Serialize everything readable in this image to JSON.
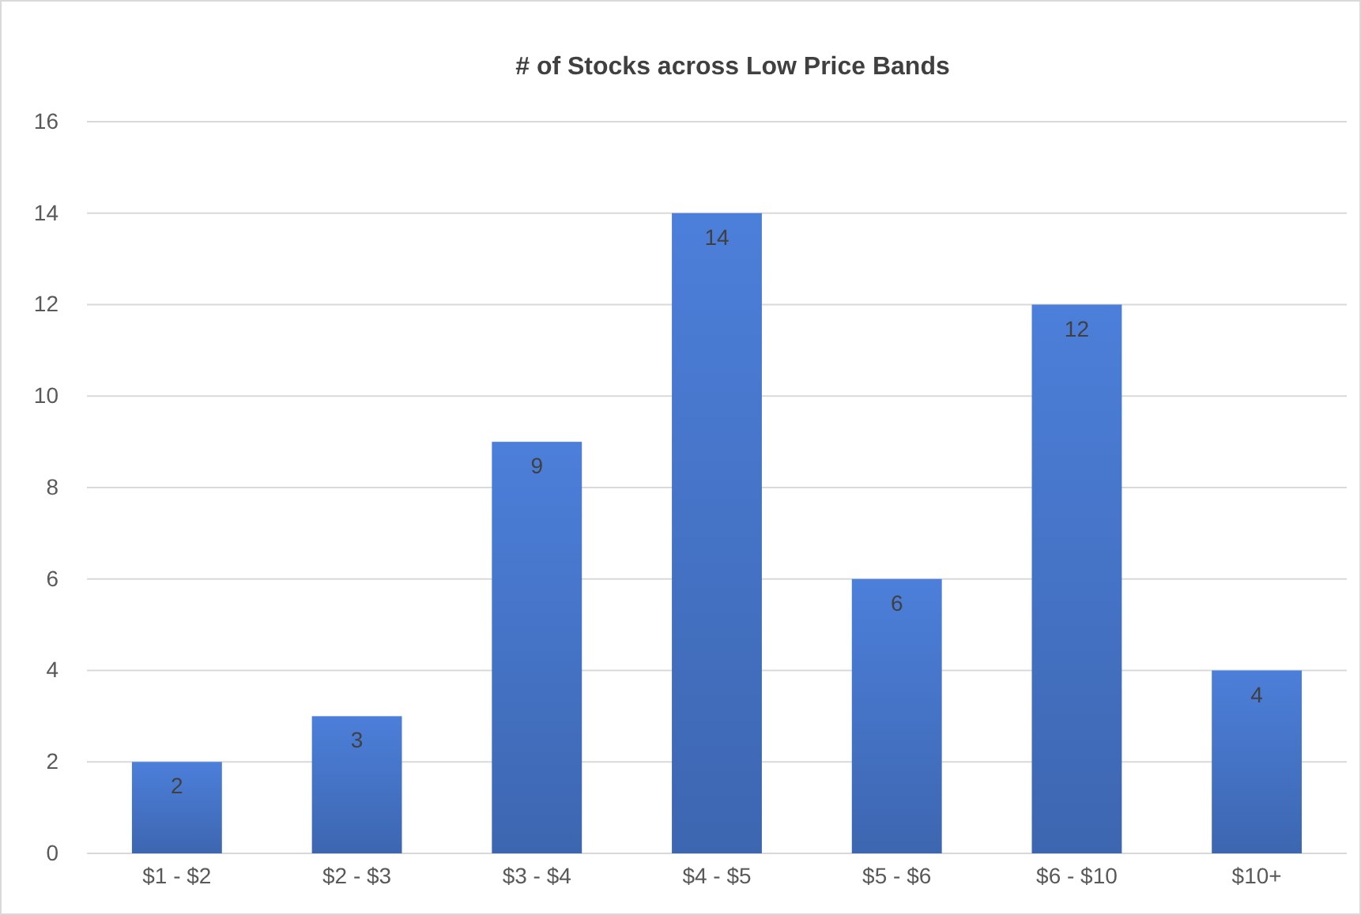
{
  "chart_data": {
    "type": "bar",
    "title": "# of Stocks across Low Price Bands",
    "categories": [
      "$1 - $2",
      "$2 - $3",
      "$3 - $4",
      "$4 - $5",
      "$5 - $6",
      "$6 - $10",
      "$10+"
    ],
    "values": [
      2,
      3,
      9,
      14,
      6,
      12,
      4
    ],
    "color": "#4472c4",
    "ylim": [
      0,
      16
    ],
    "yticks": [
      0,
      2,
      4,
      6,
      8,
      10,
      12,
      14,
      16
    ],
    "grid": "y",
    "data_labels": true
  }
}
